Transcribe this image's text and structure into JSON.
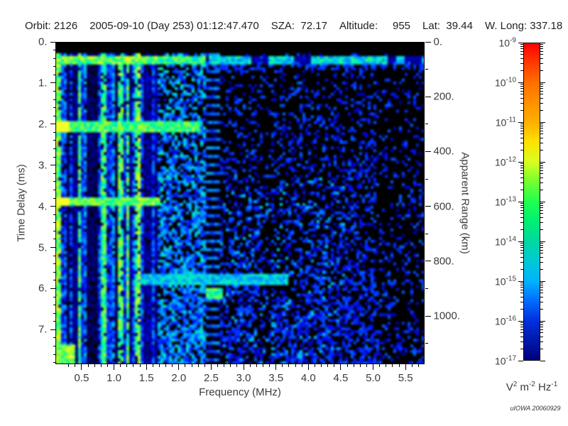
{
  "header": {
    "items": [
      "Orbit: 2126",
      "2005-09-10 (Day 253) 01:12:47.470",
      "SZA:  72.17",
      "Altitude:     955",
      "Lat:  39.44",
      "W. Long: 337.18"
    ]
  },
  "chart_data": {
    "type": "heatmap",
    "title": "Radar sounder dynamic spectrum (frequency vs time delay, log power colorscale)",
    "x_axis": {
      "label": "Frequency (MHz)",
      "min": 0.1,
      "max": 5.8,
      "major_ticks": [
        0.5,
        1.0,
        1.5,
        2.0,
        2.5,
        3.0,
        3.5,
        4.0,
        4.5,
        5.0,
        5.5
      ],
      "tick_labels": [
        "0.5",
        "1.0",
        "1.5",
        "2.0",
        "2.5",
        "3.0",
        "3.5",
        "4.0",
        "4.5",
        "5.0",
        "5.5"
      ],
      "minor_step": 0.1
    },
    "y_axis_left": {
      "label": "Time Delay (ms)",
      "min": 0,
      "max": 7.84,
      "major_ticks": [
        0,
        1,
        2,
        3,
        4,
        5,
        6,
        7
      ],
      "tick_labels": [
        "0.",
        "1.",
        "2.",
        "3.",
        "4.",
        "5.",
        "6.",
        "7."
      ],
      "minor_step": 0.2
    },
    "y_axis_right": {
      "label": "Apparent Range (km)",
      "km_per_ms": 150,
      "major_ticks": [
        0,
        200,
        400,
        600,
        800,
        1000
      ],
      "tick_labels": [
        "0.",
        "200.",
        "400.",
        "600.",
        "800.",
        "1000."
      ],
      "minor_step": 100
    },
    "colorbar": {
      "scale": "log",
      "mantissa": "10",
      "tick_exponents": [
        -9,
        -10,
        -11,
        -12,
        -13,
        -14,
        -15,
        -16,
        -17
      ],
      "unit": {
        "v": "V",
        "v_sup": "2",
        "m": "m",
        "m_sup": "-2",
        "hz": "Hz",
        "hz_sup": "-1"
      },
      "stops": [
        [
          0.0,
          "#ff0000"
        ],
        [
          0.05,
          "#ff3000"
        ],
        [
          0.125,
          "#ff7000"
        ],
        [
          0.25,
          "#ffb000"
        ],
        [
          0.31,
          "#ffe000"
        ],
        [
          0.375,
          "#d8ff20"
        ],
        [
          0.44,
          "#70ff30"
        ],
        [
          0.5,
          "#20ff50"
        ],
        [
          0.56,
          "#00f070"
        ],
        [
          0.625,
          "#00d8a0"
        ],
        [
          0.69,
          "#00c8d8"
        ],
        [
          0.75,
          "#00b4ff"
        ],
        [
          0.81,
          "#0070ff"
        ],
        [
          0.875,
          "#0030e0"
        ],
        [
          0.94,
          "#0018a8"
        ],
        [
          1.0,
          "#000080"
        ]
      ]
    },
    "credit": "uIOWA 20060929",
    "colormap": [
      [
        0.0,
        "#000000"
      ],
      [
        0.1,
        "#000060"
      ],
      [
        0.2,
        "#0000cc"
      ],
      [
        0.32,
        "#0033ff"
      ],
      [
        0.45,
        "#0088ff"
      ],
      [
        0.56,
        "#00ccee"
      ],
      [
        0.64,
        "#00eebb"
      ],
      [
        0.72,
        "#33ff66"
      ],
      [
        0.82,
        "#99ff33"
      ],
      [
        0.9,
        "#ddff22"
      ],
      [
        1.0,
        "#ffff33"
      ]
    ],
    "features": {
      "seed": 1337,
      "grid": {
        "cols": 130,
        "rows": 114
      },
      "freq_range": [
        0.1,
        5.8
      ],
      "time_range": [
        0,
        7.84
      ],
      "top_black_ms": 0.26,
      "top_band": {
        "t0": 0.28,
        "t1": 0.52,
        "yellow_f0": 0.95,
        "yellow_f1": 1.35
      },
      "underside": {
        "t0": 0.52,
        "t1": 0.66,
        "f0": 2.4
      },
      "stripe_region_max_mhz": 1.68,
      "mid_region": [
        1.68,
        2.4
      ],
      "picket_column": [
        2.44,
        2.62
      ],
      "right_region_min_mhz": 2.62,
      "dark_column": [
        3.3,
        3.45
      ],
      "far_right_sparse_mhz": 5.05,
      "h_bands": [
        {
          "t0": 1.93,
          "t1": 2.16,
          "f0": 0.1,
          "f1": 2.35,
          "v": 0.72,
          "hot_left": true
        },
        {
          "t0": 3.78,
          "t1": 4.02,
          "f0": 0.1,
          "f1": 1.7,
          "v": 0.75,
          "hot_left": true
        },
        {
          "t0": 5.66,
          "t1": 5.95,
          "f0": 1.3,
          "f1": 3.7,
          "v": 0.55,
          "hot_left": false
        },
        {
          "t0": 6.0,
          "t1": 6.25,
          "f0": 2.4,
          "f1": 2.7,
          "v": 0.7,
          "hot_left": false
        }
      ],
      "bottom_left_green": {
        "t0": 7.4,
        "f1": 0.4,
        "v": 0.8
      }
    }
  }
}
